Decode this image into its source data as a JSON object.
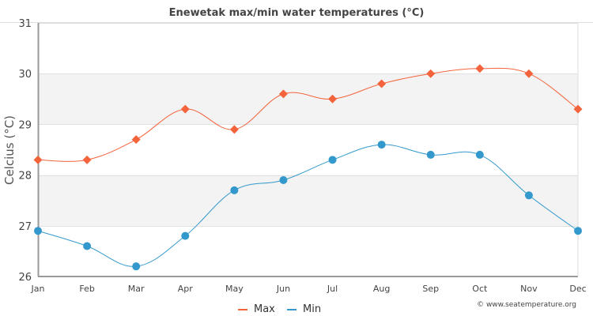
{
  "chart_data": {
    "type": "line",
    "title": "Enewetak max/min water temperatures (°C)",
    "xlabel": "",
    "ylabel": "Celcius (°C)",
    "ylim": [
      26,
      31
    ],
    "yticks": [
      "26",
      "27",
      "28",
      "29",
      "30",
      "31"
    ],
    "categories": [
      "Jan",
      "Feb",
      "Mar",
      "Apr",
      "May",
      "Jun",
      "Jul",
      "Aug",
      "Sep",
      "Oct",
      "Nov",
      "Dec"
    ],
    "series": [
      {
        "name": "Max",
        "color": "#f4643c",
        "marker": "diamond",
        "values": [
          28.3,
          28.3,
          28.7,
          29.3,
          28.9,
          29.6,
          29.5,
          29.8,
          30.0,
          30.1,
          30.0,
          29.3
        ]
      },
      {
        "name": "Min",
        "color": "#3399cc",
        "marker": "circle",
        "values": [
          26.9,
          26.6,
          26.2,
          26.8,
          27.7,
          27.9,
          28.3,
          28.6,
          28.4,
          28.4,
          27.6,
          26.9
        ]
      }
    ],
    "grid": true,
    "band_color": "#f3f3f3",
    "legend": {
      "position": "bottom-center",
      "entries": [
        "Max",
        "Min"
      ]
    },
    "credit": "© www.seatemperature.org"
  }
}
